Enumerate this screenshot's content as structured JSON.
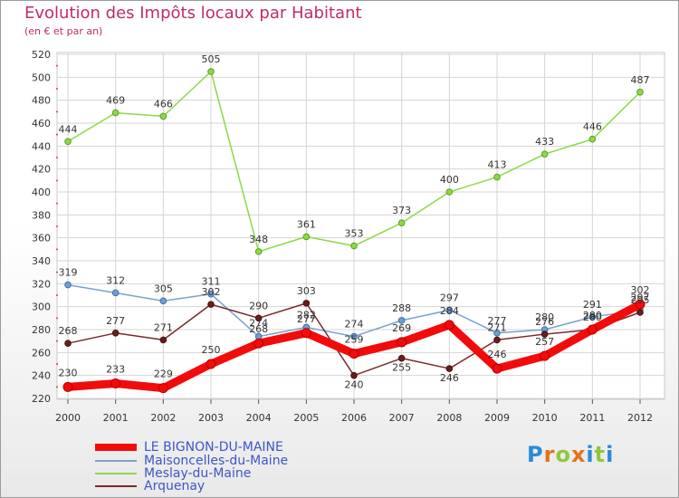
{
  "title": "Evolution des Impôts locaux par Habitant",
  "subtitle": "(en € et par an)",
  "logo_text": "Proxiti",
  "chart_data": {
    "type": "line",
    "title": "Evolution des Impôts locaux par Habitant",
    "subtitle": "(en € et par an)",
    "xlabel": "",
    "ylabel": "",
    "ylim": [
      220,
      520
    ],
    "ytick_step": 20,
    "grid": true,
    "legend_position": "bottom-left",
    "categories": [
      "2000",
      "2001",
      "2002",
      "2003",
      "2004",
      "2005",
      "2006",
      "2007",
      "2008",
      "2009",
      "2010",
      "2011",
      "2012"
    ],
    "series": [
      {
        "name": "Meslay-du-Maine",
        "color": "#8dd848",
        "values": [
          444,
          469,
          466,
          505,
          348,
          361,
          353,
          373,
          400,
          413,
          433,
          446,
          487
        ]
      },
      {
        "name": "Maisoncelles-du-Maine",
        "color": "#7aa2cc",
        "values": [
          319,
          312,
          305,
          311,
          274,
          282,
          274,
          288,
          297,
          277,
          280,
          291,
          297
        ]
      },
      {
        "name": "Arquenay",
        "color": "#7a2a2a",
        "values": [
          268,
          277,
          271,
          302,
          290,
          303,
          240,
          255,
          246,
          271,
          276,
          280,
          295
        ]
      },
      {
        "name": "LE BIGNON-DU-MAINE",
        "color": "#f20b0b",
        "values": [
          230,
          233,
          229,
          250,
          268,
          277,
          259,
          269,
          284,
          246,
          257,
          280,
          302
        ]
      }
    ]
  }
}
